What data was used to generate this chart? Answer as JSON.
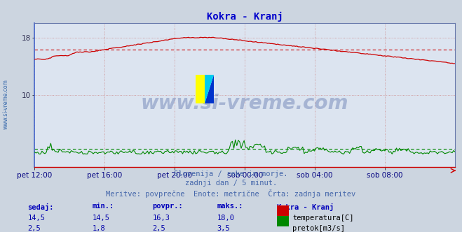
{
  "title": "Kokra - Kranj",
  "title_color": "#0000cc",
  "bg_color": "#ccd5e0",
  "plot_bg_color": "#dce4f0",
  "grid_color": "#b8c4d4",
  "xlabel_color": "#000080",
  "x_labels": [
    "pet 12:00",
    "pet 16:00",
    "pet 20:00",
    "sob 00:00",
    "sob 04:00",
    "sob 08:00"
  ],
  "x_ticks_norm": [
    0.0,
    0.1667,
    0.3333,
    0.5,
    0.6667,
    0.8333
  ],
  "y_min": 0,
  "y_max": 20,
  "temp_color": "#cc0000",
  "flow_color": "#008800",
  "watermark": "www.si-vreme.com",
  "watermark_color": "#1a3a8a",
  "watermark_alpha": 0.28,
  "left_label": "www.si-vreme.com",
  "left_label_color": "#3366aa",
  "subtitle1": "Slovenija / reke in morje.",
  "subtitle2": "zadnji dan / 5 minut.",
  "subtitle3": "Meritve: povprečne  Enote: metrične  Črta: zadnja meritev",
  "subtitle_color": "#4466aa",
  "label_sedaj": "sedaj:",
  "label_min": "min.:",
  "label_povpr": "povpr.:",
  "label_maks": "maks.:",
  "label_station": "Kokra - Kranj",
  "label_temp": "temperatura[C]",
  "label_flow": "pretok[m3/s]",
  "table_header_color": "#0000bb",
  "table_value_color": "#0000aa",
  "temp_sedaj": "14,5",
  "temp_min_v": "14,5",
  "temp_povpr": "16,3",
  "temp_maks": "18,0",
  "flow_sedaj": "2,5",
  "flow_min_v": "1,8",
  "flow_povpr": "2,5",
  "flow_maks": "3,5",
  "temp_avg_val": 16.3,
  "flow_avg_val": 2.5
}
